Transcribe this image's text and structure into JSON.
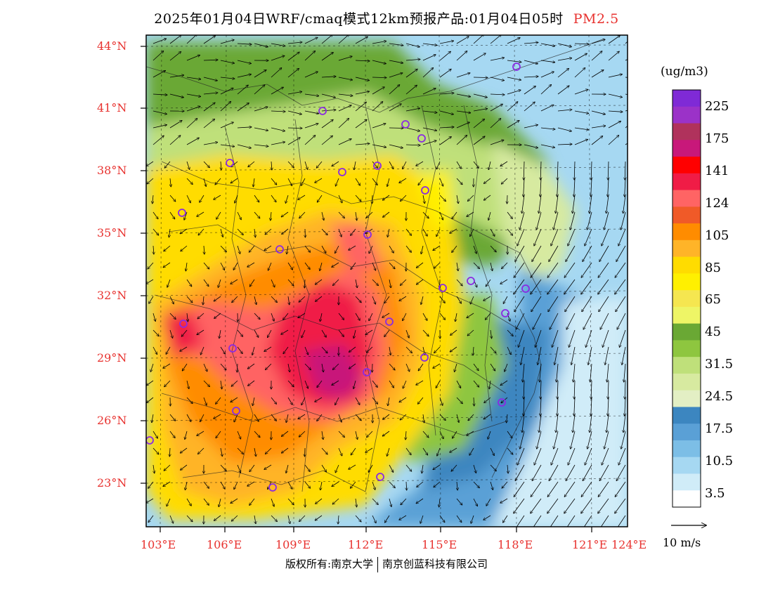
{
  "title": {
    "main": "2025年01月04日WRF/cmaq模式12km预报产品:01月04日05时",
    "product": "PM2.5"
  },
  "lat_labels": [
    "44°N",
    "41°N",
    "38°N",
    "35°N",
    "32°N",
    "29°N",
    "26°N",
    "23°N"
  ],
  "lon_labels": [
    "103°E",
    "106°E",
    "109°E",
    "112°E",
    "115°E",
    "118°E",
    "121°E",
    "124°E"
  ],
  "colorbar": {
    "unit": "(ug/m3)",
    "labels": [
      "225",
      "175",
      "141",
      "124",
      "105",
      "85",
      "65",
      "45",
      "31.5",
      "24.5",
      "17.5",
      "10.5",
      "3.5"
    ],
    "colors": [
      "#7f2ad6",
      "#9b32c8",
      "#b0325c",
      "#c8187a",
      "#ff0000",
      "#f01c46",
      "#ff6464",
      "#f05a28",
      "#ff8c00",
      "#ffb428",
      "#ffdc00",
      "#fff000",
      "#f5e650",
      "#eef566",
      "#6aa834",
      "#8ec63f",
      "#bfe07a",
      "#d7eaa0",
      "#e3efc4",
      "#3c86c0",
      "#5aa0d6",
      "#7cbee6",
      "#a6d8f2",
      "#d0ecf8",
      "#ffffff"
    ]
  },
  "wind_reference": "10 m/s",
  "copyright": {
    "left": "版权所有:南京大学",
    "right": "南京创蓝科技有限公司"
  }
}
